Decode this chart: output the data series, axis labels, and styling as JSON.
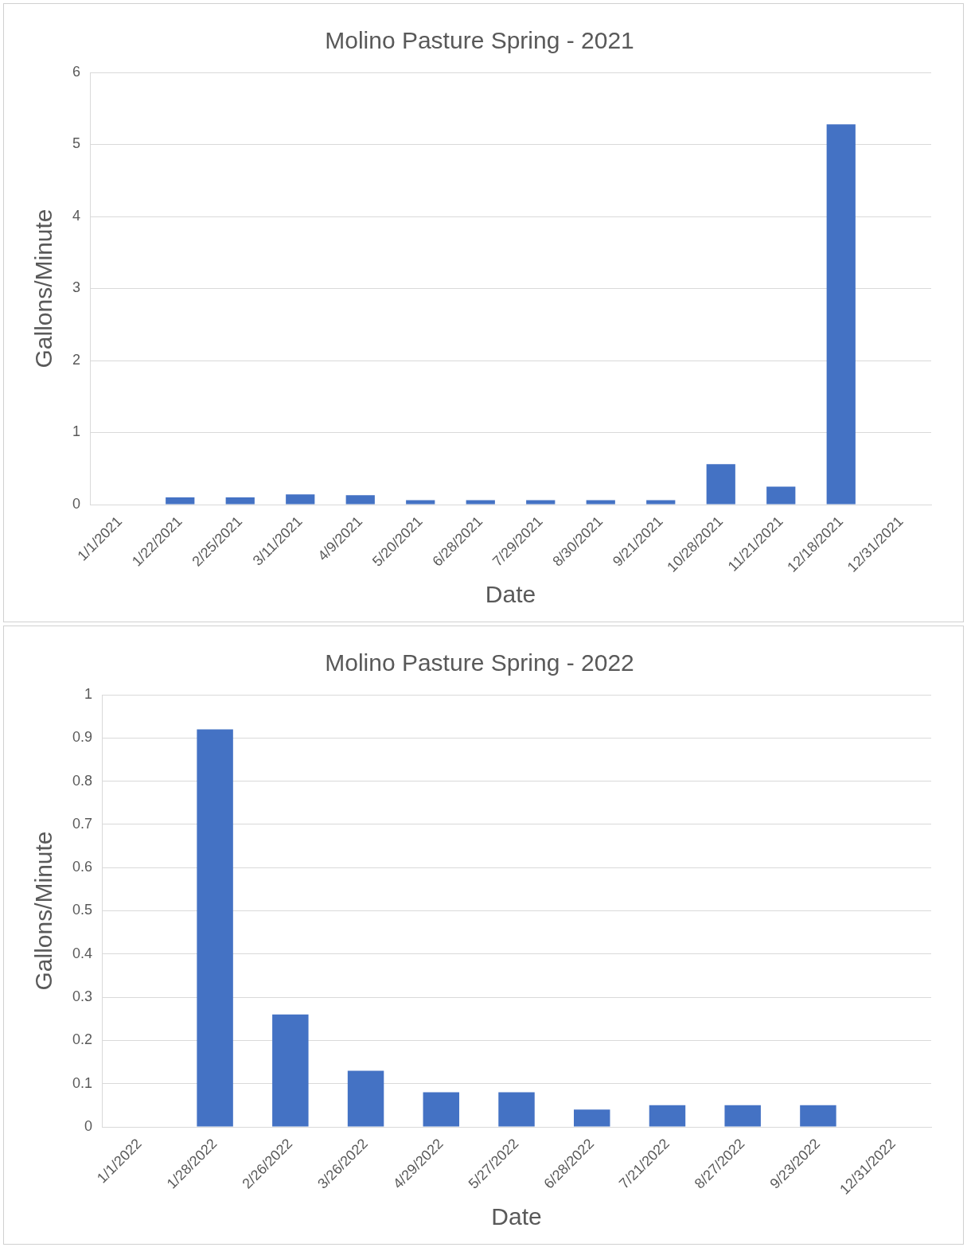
{
  "chart_data": [
    {
      "type": "bar",
      "title": "Molino Pasture Spring - 2021",
      "xlabel": "Date",
      "ylabel": "Gallons/Minute",
      "categories": [
        "1/1/2021",
        "1/22/2021",
        "2/25/2021",
        "3/11/2021",
        "4/9/2021",
        "5/20/2021",
        "6/28/2021",
        "7/29/2021",
        "8/30/2021",
        "9/21/2021",
        "10/28/2021",
        "11/21/2021",
        "12/18/2021",
        "12/31/2021"
      ],
      "values": [
        null,
        0.1,
        0.1,
        0.14,
        0.13,
        0.06,
        0.06,
        0.06,
        0.06,
        0.06,
        0.56,
        0.25,
        5.28,
        null
      ],
      "color": "#4472c4",
      "ylim": [
        0,
        6
      ],
      "yticks": [
        0,
        1,
        2,
        3,
        4,
        5,
        6
      ],
      "grid": "y"
    },
    {
      "type": "bar",
      "title": "Molino Pasture Spring - 2022",
      "xlabel": "Date",
      "ylabel": "Gallons/Minute",
      "categories": [
        "1/1/2022",
        "1/28/2022",
        "2/26/2022",
        "3/26/2022",
        "4/29/2022",
        "5/27/2022",
        "6/28/2022",
        "7/21/2022",
        "8/27/2022",
        "9/23/2022",
        "12/31/2022"
      ],
      "values": [
        null,
        0.92,
        0.26,
        0.13,
        0.08,
        0.08,
        0.04,
        0.05,
        0.05,
        0.05,
        null
      ],
      "color": "#4472c4",
      "ylim": [
        0,
        1
      ],
      "yticks": [
        0,
        0.1,
        0.2,
        0.3,
        0.4,
        0.5,
        0.6,
        0.7,
        0.8,
        0.9,
        1
      ],
      "grid": "y"
    }
  ]
}
